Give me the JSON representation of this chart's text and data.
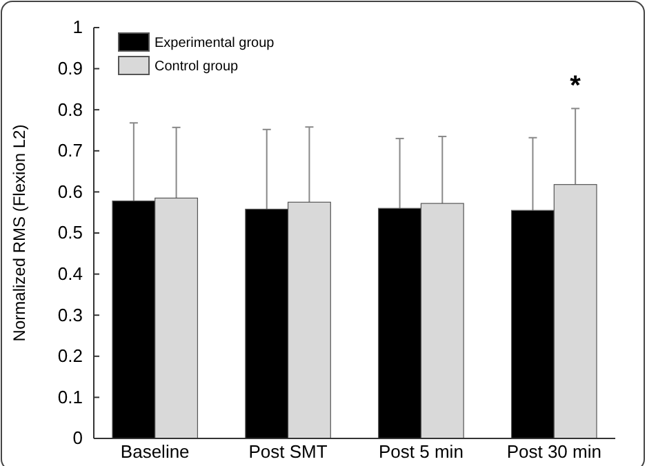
{
  "chart_data": {
    "type": "bar",
    "ylabel": "Normalized RMS (Flexion L2)",
    "categories": [
      "Baseline",
      "Post SMT",
      "Post 5 min",
      "Post 30 min"
    ],
    "series": [
      {
        "name": "Experimental group",
        "color": "#000000",
        "values": [
          0.578,
          0.558,
          0.56,
          0.555
        ],
        "errors": [
          0.19,
          0.194,
          0.17,
          0.177
        ]
      },
      {
        "name": "Control group",
        "color": "#d9d9d9",
        "values": [
          0.585,
          0.575,
          0.572,
          0.618
        ],
        "errors": [
          0.172,
          0.183,
          0.163,
          0.185
        ]
      }
    ],
    "ylim": [
      0,
      1
    ],
    "yticks": [
      0,
      0.1,
      0.2,
      0.3,
      0.4,
      0.5,
      0.6,
      0.7,
      0.8,
      0.9,
      1
    ],
    "legend": "top left",
    "grid": false,
    "annotations": [
      "*"
    ]
  }
}
